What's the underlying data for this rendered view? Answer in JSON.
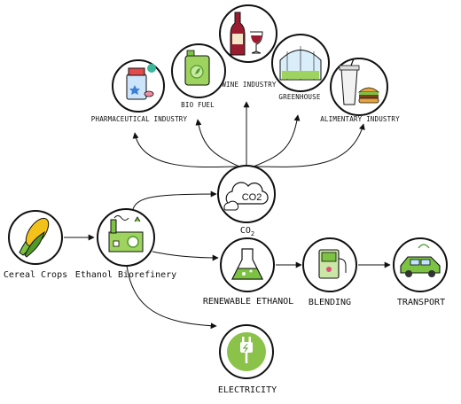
{
  "nodes": {
    "cereal_crops": "Cereal Crops",
    "ethanol_biorefinery": "Ethanol Biorefinery",
    "co2": {
      "base": "CO",
      "sub": "2",
      "icon_text": "CO2"
    },
    "renewable_ethanol": "RENEWABLE ETHANOL",
    "blending": "BLENDING",
    "transport": "TRANSPORT",
    "electricity": "ELECTRICITY",
    "pharmaceutical_industry": "PHARMACEUTICAL INDUSTRY",
    "bio_fuel": "BIO FUEL",
    "wine_industry": "WINE INDUSTRY",
    "greenhouse": "GREENHOUSE",
    "alimentary_industry": "ALIMENTARY INDUSTRY"
  },
  "colors": {
    "outline": "#111111",
    "green": "#7cc243",
    "green_dark": "#4f9a2a",
    "yellow": "#f2c21b",
    "wine": "#9b1b30",
    "blue": "#3a7fd8"
  }
}
